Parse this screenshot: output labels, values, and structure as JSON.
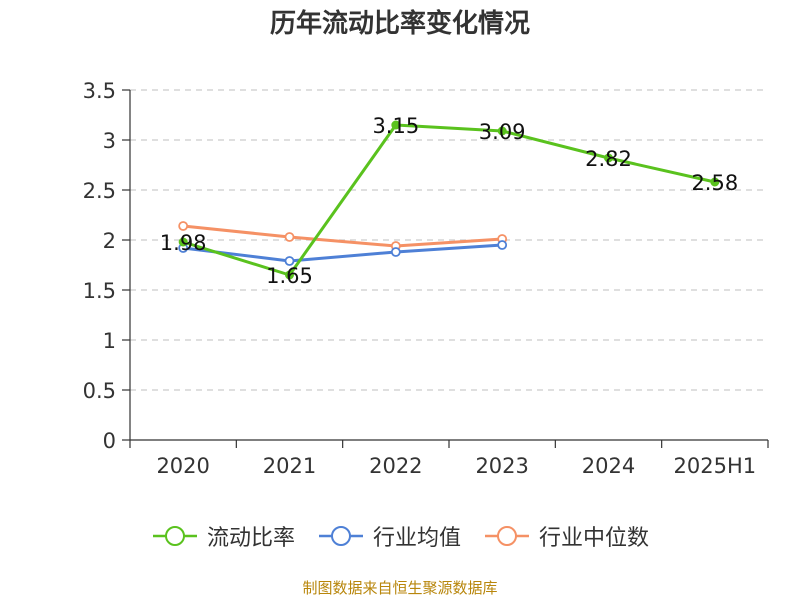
{
  "title": "历年流动比率变化情况",
  "source": "制图数据来自恒生聚源数据库",
  "chart_data": {
    "type": "line",
    "categories": [
      "2020",
      "2021",
      "2022",
      "2023",
      "2024",
      "2025H1"
    ],
    "yticks": [
      "0",
      "0.5",
      "1",
      "1.5",
      "2",
      "2.5",
      "3",
      "3.5"
    ],
    "ylim": [
      0,
      3.5
    ],
    "grid": true,
    "legend_position": "bottom",
    "series": [
      {
        "name": "流动比率",
        "color": "#5ac21e",
        "values": [
          1.98,
          1.65,
          3.15,
          3.09,
          2.82,
          2.58
        ],
        "labels": [
          "1.98",
          "1.65",
          "3.15",
          "3.09",
          "2.82",
          "2.58"
        ]
      },
      {
        "name": "行业均值",
        "color": "#4e80d6",
        "values": [
          1.92,
          1.79,
          1.88,
          1.95,
          null,
          null
        ]
      },
      {
        "name": "行业中位数",
        "color": "#f59165",
        "values": [
          2.14,
          2.03,
          1.94,
          2.01,
          null,
          null
        ]
      }
    ]
  }
}
